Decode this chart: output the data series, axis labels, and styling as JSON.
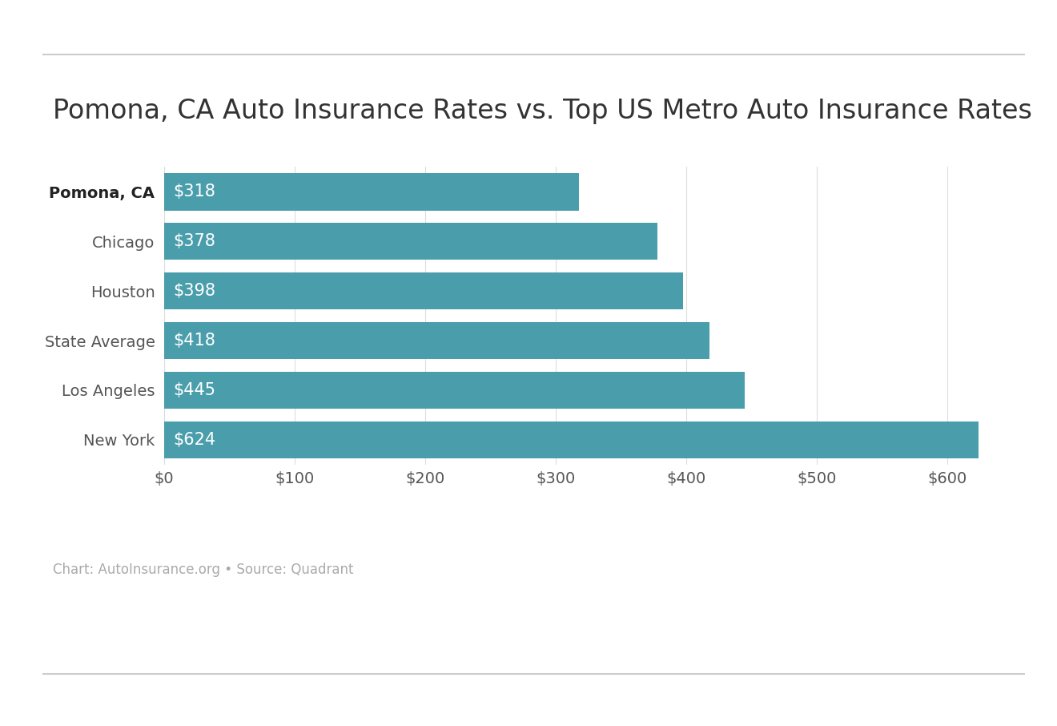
{
  "title": "Pomona, CA Auto Insurance Rates vs. Top US Metro Auto Insurance Rates",
  "categories": [
    "Pomona, CA",
    "Chicago",
    "Houston",
    "State Average",
    "Los Angeles",
    "New York"
  ],
  "values": [
    318,
    378,
    398,
    418,
    445,
    624
  ],
  "labels": [
    "$318",
    "$378",
    "$398",
    "$418",
    "$445",
    "$624"
  ],
  "bar_color": "#4a9eac",
  "background_color": "#ffffff",
  "title_fontsize": 24,
  "label_fontsize": 15,
  "tick_fontsize": 14,
  "source_text": "Chart: AutoInsurance.org • Source: Quadrant",
  "source_fontsize": 12,
  "xlim": [
    0,
    660
  ],
  "xticks": [
    0,
    100,
    200,
    300,
    400,
    500,
    600
  ],
  "xtick_labels": [
    "$0",
    "$100",
    "$200",
    "$300",
    "$400",
    "$500",
    "$600"
  ],
  "bar_height": 0.75,
  "title_color": "#333333",
  "tick_color": "#555555",
  "source_color": "#aaaaaa",
  "grid_color": "#dddddd",
  "line_color": "#cccccc"
}
